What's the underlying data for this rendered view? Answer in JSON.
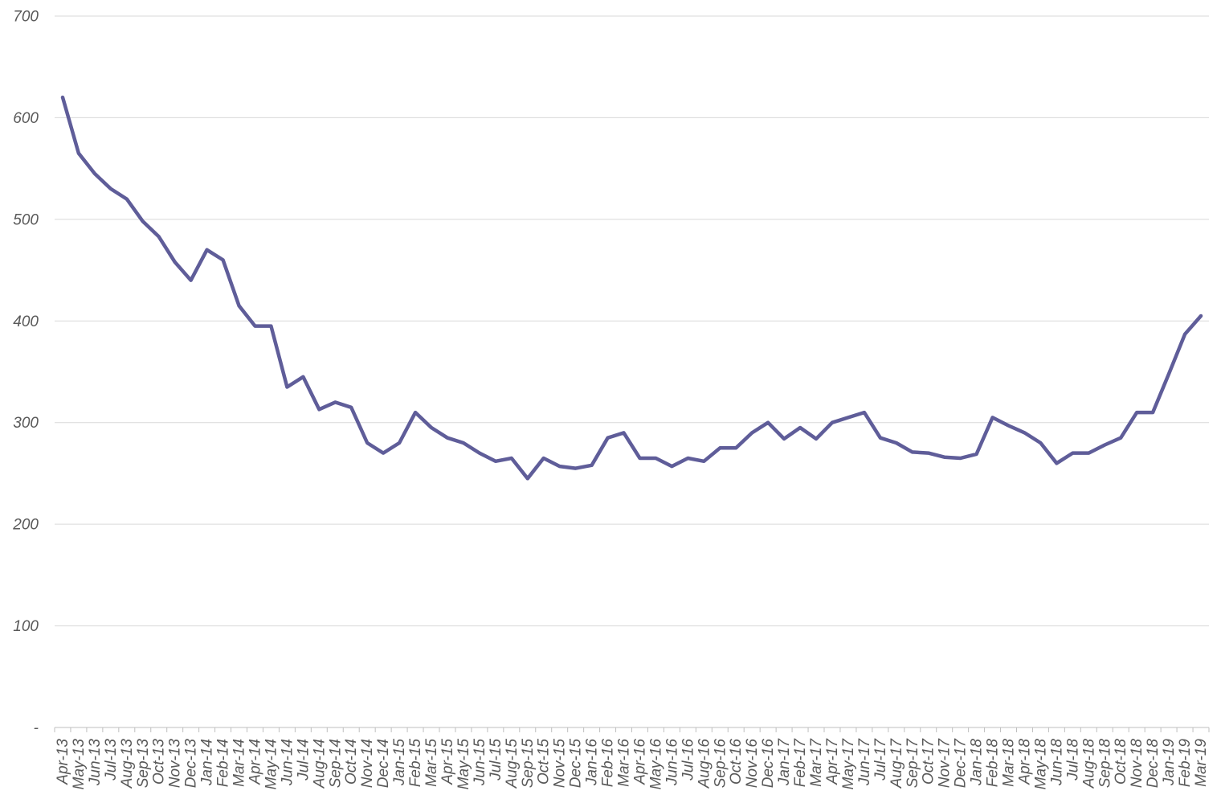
{
  "chart_data": {
    "type": "line",
    "title": "",
    "xlabel": "",
    "ylabel": "",
    "legend": "none",
    "grid": "horizontal",
    "ylim": [
      0,
      700
    ],
    "y_ticks": [
      {
        "value": 0,
        "label": "-"
      },
      {
        "value": 100,
        "label": "100"
      },
      {
        "value": 200,
        "label": "200"
      },
      {
        "value": 300,
        "label": "300"
      },
      {
        "value": 400,
        "label": "400"
      },
      {
        "value": 500,
        "label": "500"
      },
      {
        "value": 600,
        "label": "600"
      },
      {
        "value": 700,
        "label": "700"
      }
    ],
    "categories": [
      "Apr-13",
      "May-13",
      "Jun-13",
      "Jul-13",
      "Aug-13",
      "Sep-13",
      "Oct-13",
      "Nov-13",
      "Dec-13",
      "Jan-14",
      "Feb-14",
      "Mar-14",
      "Apr-14",
      "May-14",
      "Jun-14",
      "Jul-14",
      "Aug-14",
      "Sep-14",
      "Oct-14",
      "Nov-14",
      "Dec-14",
      "Jan-15",
      "Feb-15",
      "Mar-15",
      "Apr-15",
      "May-15",
      "Jun-15",
      "Jul-15",
      "Aug-15",
      "Sep-15",
      "Oct-15",
      "Nov-15",
      "Dec-15",
      "Jan-16",
      "Feb-16",
      "Mar-16",
      "Apr-16",
      "May-16",
      "Jun-16",
      "Jul-16",
      "Aug-16",
      "Sep-16",
      "Oct-16",
      "Nov-16",
      "Dec-16",
      "Jan-17",
      "Feb-17",
      "Mar-17",
      "Apr-17",
      "May-17",
      "Jun-17",
      "Jul-17",
      "Aug-17",
      "Sep-17",
      "Oct-17",
      "Nov-17",
      "Dec-17",
      "Jan-18",
      "Feb-18",
      "Mar-18",
      "Apr-18",
      "May-18",
      "Jun-18",
      "Jul-18",
      "Aug-18",
      "Sep-18",
      "Oct-18",
      "Nov-18",
      "Dec-18",
      "Jan-19",
      "Feb-19",
      "Mar-19"
    ],
    "series": [
      {
        "name": "",
        "values": [
          620,
          565,
          545,
          530,
          520,
          498,
          483,
          458,
          440,
          470,
          460,
          415,
          395,
          395,
          335,
          345,
          313,
          320,
          315,
          280,
          270,
          280,
          310,
          295,
          285,
          280,
          270,
          262,
          265,
          245,
          265,
          257,
          255,
          258,
          285,
          290,
          265,
          265,
          257,
          265,
          262,
          275,
          275,
          290,
          300,
          284,
          295,
          284,
          300,
          305,
          310,
          285,
          280,
          271,
          270,
          266,
          265,
          269,
          305,
          297,
          290,
          280,
          260,
          270,
          270,
          278,
          285,
          310,
          310,
          348,
          387,
          405
        ]
      }
    ],
    "colors": {
      "line": "#5F5D99",
      "gridline": "#D9D9D9",
      "axis": "#BFBFBF",
      "tick_label": "#595959",
      "background": "#FFFFFF"
    }
  }
}
